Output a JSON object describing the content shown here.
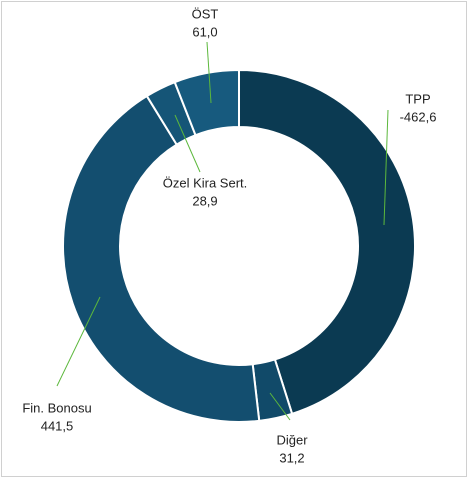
{
  "chart_data": {
    "type": "donut",
    "categories": [
      "TPP",
      "Diğer",
      "Fin. Bonosu",
      "Özel Kira Sert.",
      "ÖST"
    ],
    "values": [
      -462.6,
      31.2,
      441.5,
      28.9,
      61.0
    ],
    "value_labels": [
      "-462,6",
      "31,2",
      "441,5",
      "28,9",
      "61,0"
    ],
    "colors": [
      "#0b3a52",
      "#114a69",
      "#134e6f",
      "#155577",
      "#175a7e"
    ]
  }
}
